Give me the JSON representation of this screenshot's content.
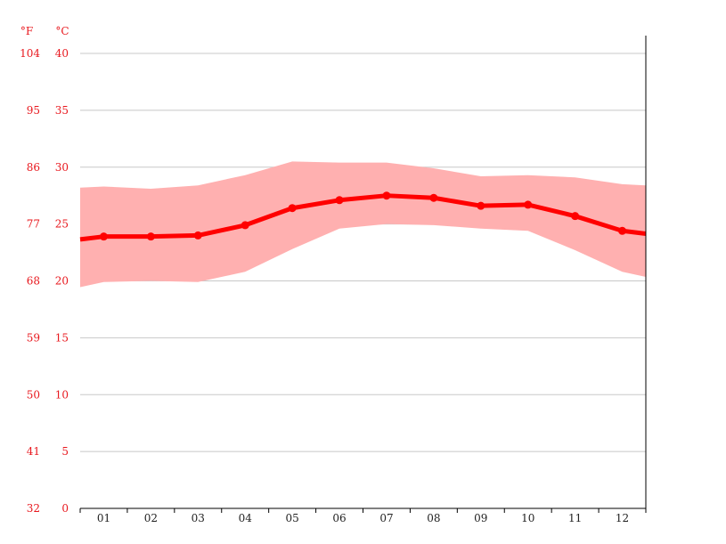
{
  "chart_data": {
    "type": "line",
    "units": {
      "fahrenheit": "°F",
      "celsius": "°C"
    },
    "categories": [
      "01",
      "02",
      "03",
      "04",
      "05",
      "06",
      "07",
      "08",
      "09",
      "10",
      "11",
      "12"
    ],
    "y_ticks_c": [
      0,
      5,
      10,
      15,
      20,
      25,
      30,
      35,
      40
    ],
    "y_ticks_f": [
      "32",
      "41",
      "50",
      "59",
      "68",
      "77",
      "86",
      "95",
      "104"
    ],
    "ylim": [
      0,
      40
    ],
    "grid": true,
    "series": [
      {
        "role": "mean",
        "values": [
          23.9,
          23.9,
          24.0,
          24.9,
          26.4,
          27.1,
          27.5,
          27.3,
          26.6,
          26.7,
          25.7,
          24.4
        ]
      },
      {
        "role": "max",
        "values": [
          28.3,
          28.1,
          28.4,
          29.3,
          30.5,
          30.4,
          30.4,
          29.9,
          29.2,
          29.3,
          29.1,
          28.5
        ]
      },
      {
        "role": "min",
        "values": [
          19.9,
          20.0,
          19.9,
          20.8,
          22.8,
          24.6,
          25.0,
          24.9,
          24.6,
          24.4,
          22.7,
          20.8
        ]
      }
    ],
    "colors": {
      "line": "#ff0000",
      "band": "#ffb0b0",
      "axis_labels": "#e8181e",
      "grid": "#c8c8c8"
    }
  }
}
